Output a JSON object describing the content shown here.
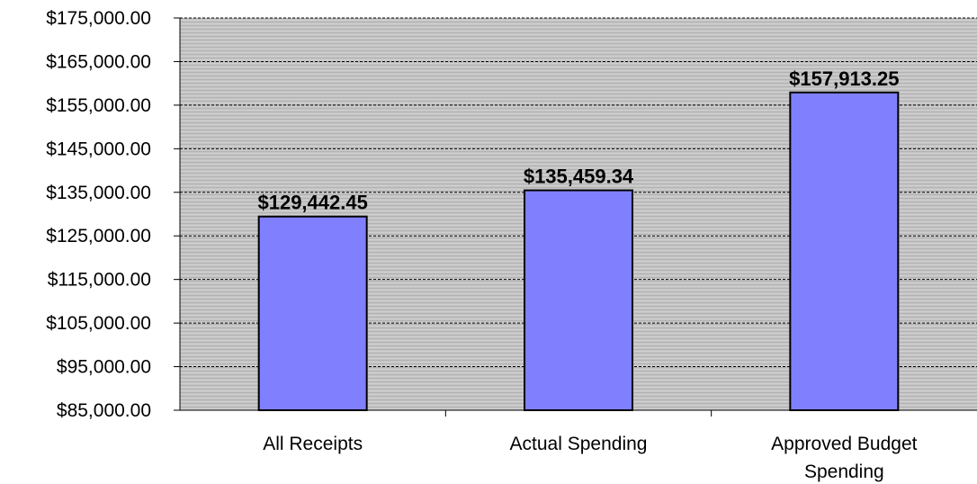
{
  "chart_data": {
    "type": "bar",
    "title": "",
    "xlabel": "",
    "ylabel": "",
    "categories": [
      [
        "All Receipts"
      ],
      [
        "Actual Spending"
      ],
      [
        "Approved Budget",
        "Spending"
      ]
    ],
    "values": [
      129442.45,
      135459.34,
      157913.25
    ],
    "data_labels": [
      "$129,442.45",
      "$135,459.34",
      "$157,913.25"
    ],
    "ylim": [
      85000,
      175000
    ],
    "y_ticks": [
      85000,
      95000,
      105000,
      115000,
      125000,
      135000,
      145000,
      155000,
      165000,
      175000
    ],
    "y_tick_labels": [
      "$85,000.00",
      "$95,000.00",
      "$105,000.00",
      "$115,000.00",
      "$125,000.00",
      "$135,000.00",
      "$145,000.00",
      "$155,000.00",
      "$165,000.00",
      "$175,000.00"
    ],
    "grid": true,
    "legend": "none",
    "colors": {
      "bar_fill": "#8080ff",
      "bar_stroke": "#000000",
      "plot_background": "#c0c0c0",
      "gridline": "#000000"
    }
  }
}
